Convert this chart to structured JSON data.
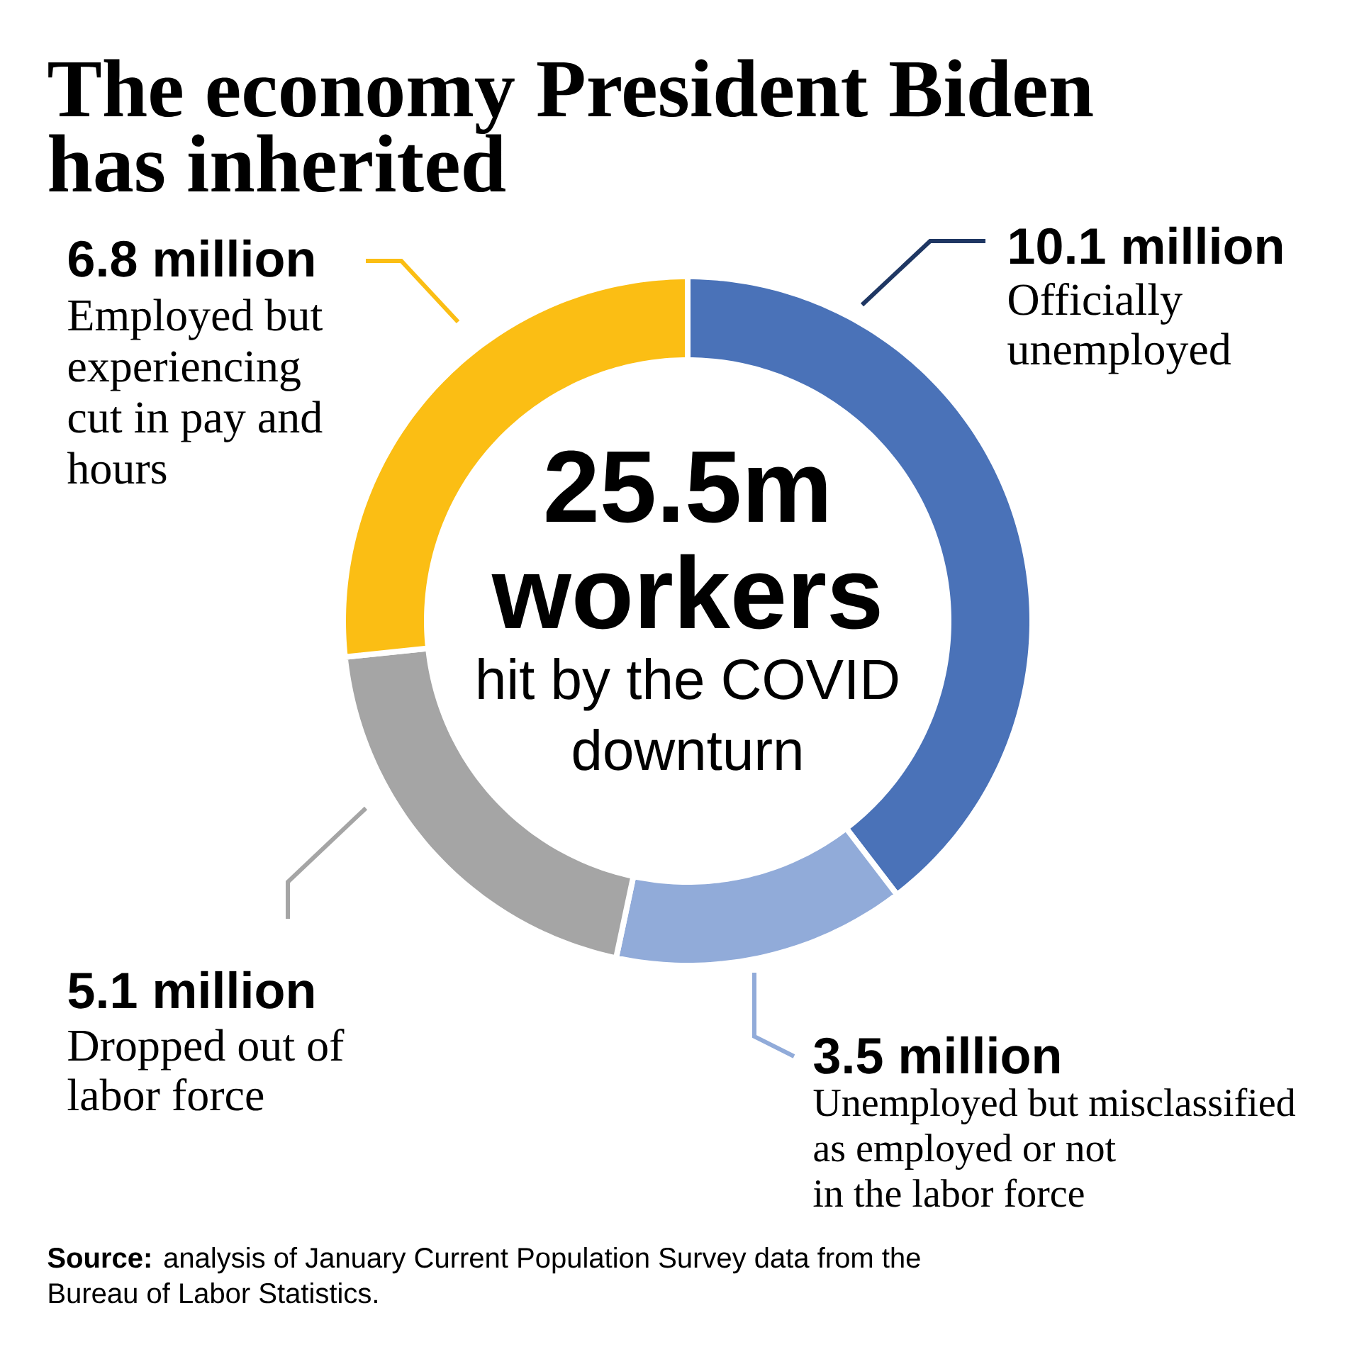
{
  "chart_data": {
    "type": "donut",
    "title": "The economy President Biden has inherited",
    "categories": [
      "Officially unemployed",
      "Unemployed but misclassified as employed or not in the labor force",
      "Dropped out of labor force",
      "Employed but experiencing cut in pay and hours"
    ],
    "values": [
      10.1,
      3.5,
      5.1,
      6.8
    ],
    "value_labels": [
      "10.1 million",
      "3.5 million",
      "5.1 million",
      "6.8 million"
    ],
    "colors": [
      "#4a72b8",
      "#91abd9",
      "#a5a5a5",
      "#fbbe14"
    ],
    "annotations": [
      "25.5m workers",
      "hit by the COVID downturn",
      "**Source:** analysis of January Current Population Survey data from the Bureau of Labor Statistics."
    ]
  }
}
